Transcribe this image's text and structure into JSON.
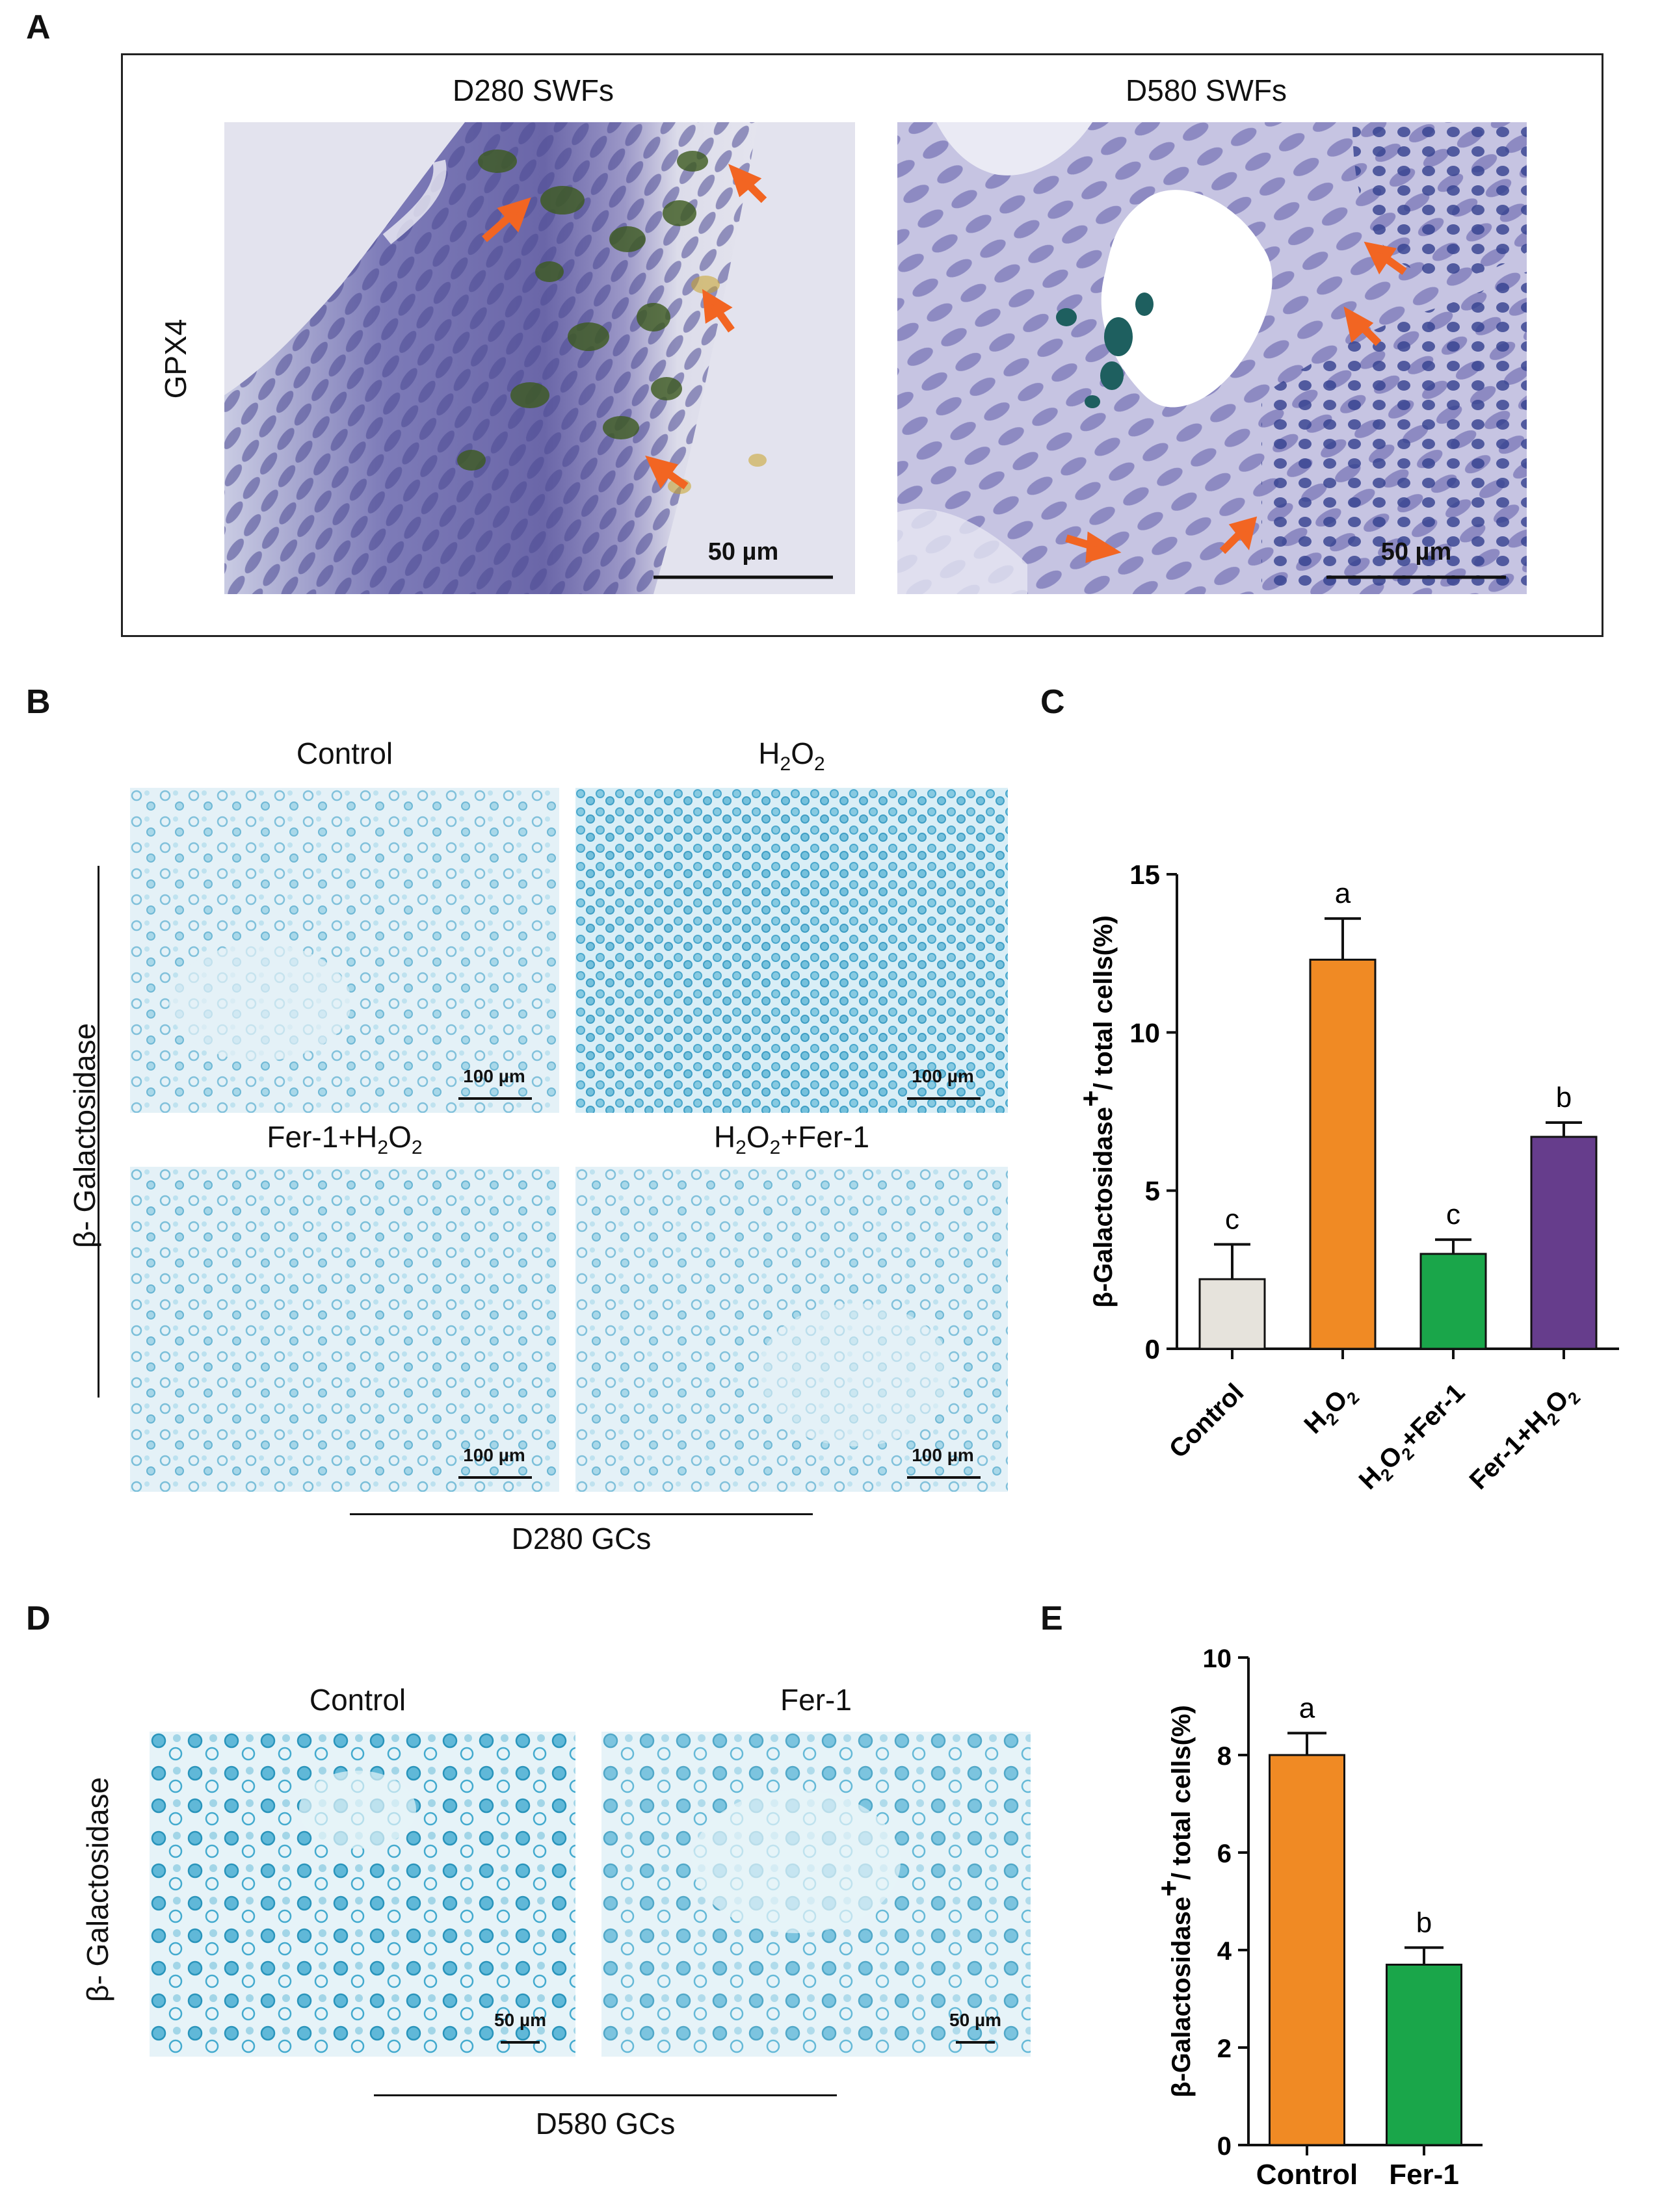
{
  "panelA": {
    "label": "A",
    "row_label": "GPX4",
    "images": [
      {
        "title": "D280 SWFs",
        "scale": "50 µm"
      },
      {
        "title": "D580 SWFs",
        "scale": "50 µm"
      }
    ]
  },
  "panelB": {
    "label": "B",
    "side_label": "β- Galactosidase",
    "group_label": "D280 GCs",
    "images": [
      {
        "title": "Control",
        "title_sub": "",
        "title_tail": "",
        "scale": "100 µm"
      },
      {
        "title": "H",
        "title_sub": "2",
        "title_mid": "O",
        "title_sub2": "2",
        "title_tail": "",
        "scale": "100 µm"
      },
      {
        "title": "Fer-1+H",
        "title_sub": "2",
        "title_mid": "O",
        "title_sub2": "2",
        "title_tail": "",
        "scale": "100 µm"
      },
      {
        "title": "H",
        "title_sub": "2",
        "title_mid": "O",
        "title_sub2": "2",
        "title_tail": "+Fer-1",
        "scale": "100 µm"
      }
    ]
  },
  "panelD": {
    "label": "D",
    "side_label": "β- Galactosidase",
    "group_label": "D580 GCs",
    "images": [
      {
        "title": "Control",
        "scale": "50 µm"
      },
      {
        "title": "Fer-1",
        "scale": "50 µm"
      }
    ]
  },
  "colors": {
    "control_gray": "#e6e3dc",
    "orange": "#f08a24",
    "green": "#1aa64a",
    "purple": "#663d8c",
    "arrow": "#f26522"
  },
  "chart_data": [
    {
      "panel": "C",
      "type": "bar",
      "ylabel_main": "β-Galactosidase",
      "ylabel_sup": "+",
      "ylabel_tail": "/ total cells(%)",
      "ylim": [
        0,
        15
      ],
      "yticks": [
        0,
        5,
        10,
        15
      ],
      "categories": [
        "Control",
        "H2O2",
        "H2O2+Fer-1",
        "Fer-1+H2O2"
      ],
      "category_labels": [
        {
          "parts": [
            [
              "Control",
              ""
            ]
          ]
        },
        {
          "parts": [
            [
              "H",
              ""
            ],
            [
              "2",
              "sub"
            ],
            [
              "O",
              ""
            ],
            [
              "2",
              "sub"
            ]
          ]
        },
        {
          "parts": [
            [
              "H",
              ""
            ],
            [
              "2",
              "sub"
            ],
            [
              "O",
              ""
            ],
            [
              "2",
              "sub"
            ],
            [
              "+Fer-1",
              ""
            ]
          ]
        },
        {
          "parts": [
            [
              "Fer-1+H",
              ""
            ],
            [
              "2",
              "sub"
            ],
            [
              "O",
              ""
            ],
            [
              "2",
              "sub"
            ]
          ]
        }
      ],
      "values": [
        2.2,
        12.3,
        3.0,
        6.7
      ],
      "errors": [
        1.1,
        1.3,
        0.45,
        0.45
      ],
      "letters": [
        "c",
        "a",
        "c",
        "b"
      ],
      "colors": [
        "#e6e3dc",
        "#f08a24",
        "#1aa64a",
        "#663d8c"
      ]
    },
    {
      "panel": "E",
      "type": "bar",
      "ylabel_main": "β-Galactosidase",
      "ylabel_sup": "+",
      "ylabel_tail": "/ total cells(%)",
      "ylim": [
        0,
        10
      ],
      "yticks": [
        0,
        2,
        4,
        6,
        8,
        10
      ],
      "categories": [
        "Control",
        "Fer-1"
      ],
      "values": [
        8.0,
        3.7
      ],
      "errors": [
        0.45,
        0.35
      ],
      "letters": [
        "a",
        "b"
      ],
      "colors": [
        "#f08a24",
        "#1aa64a"
      ]
    }
  ]
}
